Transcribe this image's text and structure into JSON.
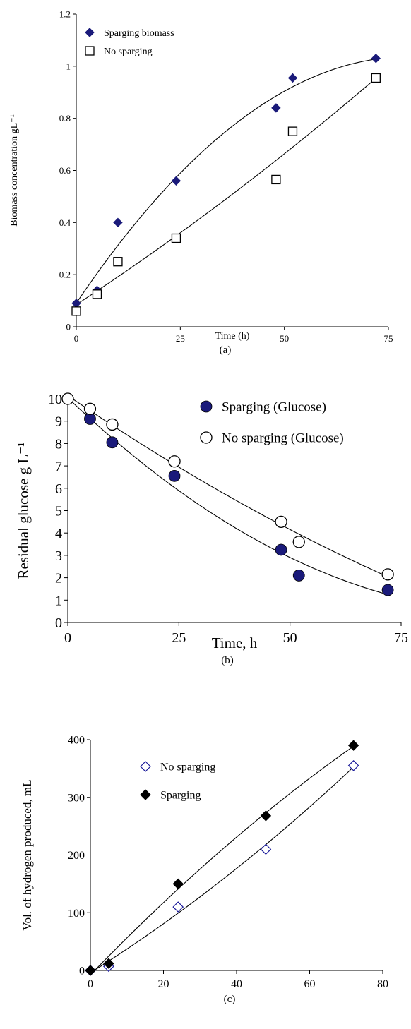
{
  "chart_data": [
    {
      "type": "scatter",
      "panel_label": "(a)",
      "xlabel": "Time (h)",
      "ylabel": "Biomass concentration gL⁻¹",
      "xlim": [
        0,
        75
      ],
      "ylim": [
        0,
        1.2
      ],
      "xticks": [
        "0",
        "25",
        "50",
        "75"
      ],
      "yticks": [
        "0",
        "0.2",
        "0.4",
        "0.6",
        "0.8",
        "1",
        "1.2"
      ],
      "legend_position": "top-left",
      "series": [
        {
          "name": "Sparging biomass",
          "marker": "filled-diamond",
          "color": "#1a1a7a",
          "x": [
            0,
            5,
            10,
            24,
            48,
            52,
            72
          ],
          "y": [
            0.09,
            0.14,
            0.4,
            0.56,
            0.84,
            0.955,
            1.03
          ],
          "fit_curve": true
        },
        {
          "name": "No sparging",
          "marker": "open-square",
          "color": "#000000",
          "x": [
            0,
            5,
            10,
            24,
            48,
            52,
            72
          ],
          "y": [
            0.06,
            0.125,
            0.25,
            0.34,
            0.565,
            0.75,
            0.955
          ],
          "fit_curve": true
        }
      ]
    },
    {
      "type": "scatter",
      "panel_label": "(b)",
      "xlabel": "Time, h",
      "ylabel": "Residual glucose g L⁻¹",
      "xlim": [
        0,
        75
      ],
      "ylim": [
        0,
        10
      ],
      "xticks": [
        "0",
        "25",
        "50",
        "75"
      ],
      "yticks": [
        "0",
        "1",
        "2",
        "3",
        "4",
        "5",
        "6",
        "7",
        "8",
        "9",
        "10"
      ],
      "legend_position": "top-right",
      "series": [
        {
          "name": "Sparging (Glucose)",
          "marker": "filled-circle",
          "color": "#1a1a7a",
          "x": [
            0,
            5,
            10,
            24,
            48,
            52,
            72
          ],
          "y": [
            10,
            9.1,
            8.05,
            6.55,
            3.25,
            2.1,
            1.45
          ],
          "fit_curve": true
        },
        {
          "name": "No sparging (Glucose)",
          "marker": "open-circle",
          "color": "#000000",
          "x": [
            0,
            5,
            10,
            24,
            48,
            52,
            72
          ],
          "y": [
            10,
            9.55,
            8.85,
            7.2,
            4.5,
            3.6,
            2.15
          ],
          "fit_curve": true
        }
      ]
    },
    {
      "type": "scatter",
      "panel_label": "(c)",
      "xlabel": "",
      "ylabel": "Vol. of hydrogen produced, mL",
      "xlim": [
        0,
        80
      ],
      "ylim": [
        0,
        400
      ],
      "xticks": [
        "0",
        "20",
        "40",
        "60",
        "80"
      ],
      "yticks": [
        "0",
        "100",
        "200",
        "300",
        "400"
      ],
      "legend_position": "top-left",
      "series": [
        {
          "name": "No sparging",
          "marker": "open-diamond",
          "color": "#1a1a9a",
          "x": [
            0,
            5,
            24,
            48,
            72
          ],
          "y": [
            0,
            7,
            110,
            210,
            355
          ],
          "fit_curve": true
        },
        {
          "name": "Sparging",
          "marker": "filled-diamond",
          "color": "#000000",
          "x": [
            0,
            5,
            24,
            48,
            72
          ],
          "y": [
            0,
            12,
            150,
            268,
            390
          ],
          "fit_curve": true
        }
      ]
    }
  ]
}
